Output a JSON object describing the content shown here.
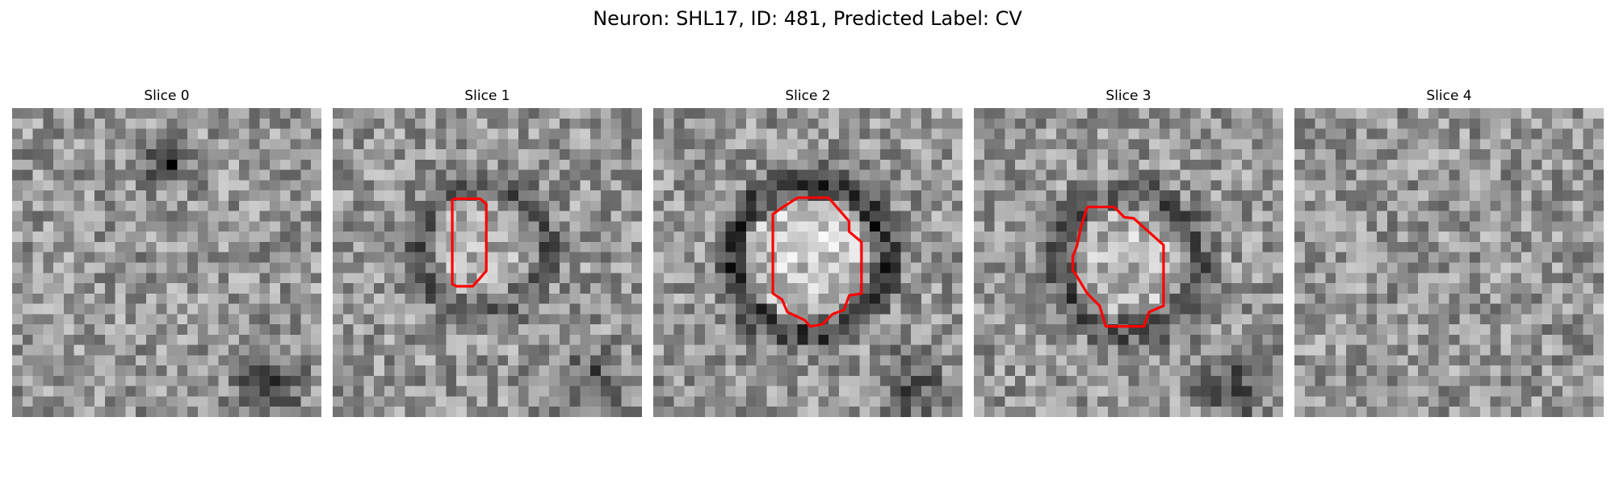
{
  "figure": {
    "title": "Neuron: SHL17, ID: 481, Predicted Label: CV"
  },
  "panels": [
    {
      "title": "Slice 0",
      "seed": 11,
      "features": {
        "dark_blob": true,
        "ring": 0,
        "contour": "none"
      }
    },
    {
      "title": "Slice 1",
      "seed": 23,
      "features": {
        "dark_blob": false,
        "ring": 0.55,
        "contour": "small"
      }
    },
    {
      "title": "Slice 2",
      "seed": 37,
      "features": {
        "dark_blob": false,
        "ring": 1.0,
        "contour": "large"
      }
    },
    {
      "title": "Slice 3",
      "seed": 53,
      "features": {
        "dark_blob": false,
        "ring": 0.7,
        "contour": "medium"
      }
    },
    {
      "title": "Slice 4",
      "seed": 71,
      "features": {
        "dark_blob": false,
        "ring": 0,
        "contour": "none"
      }
    }
  ],
  "colors": {
    "contour": "#ff0000",
    "colormap": "gray"
  }
}
